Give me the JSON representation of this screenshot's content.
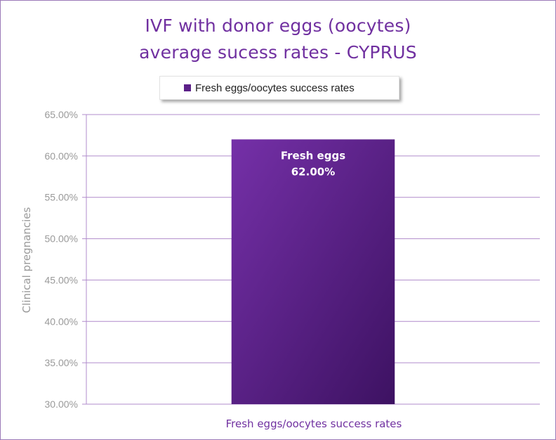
{
  "chart_data": {
    "type": "bar",
    "title": "IVF with donor eggs (oocytes)",
    "subtitle": "average sucess rates - CYPRUS",
    "categories": [
      "Fresh eggs/oocytes success rates"
    ],
    "series": [
      {
        "name": "Fresh eggs/oocytes success rates",
        "values": [
          62.0
        ],
        "data_label_name": "Fresh eggs",
        "data_label_value": "62.00%"
      }
    ],
    "xlabel": "Fresh eggs/oocytes success rates",
    "ylabel": "Clinical pregnancies",
    "ylim": [
      30,
      65
    ],
    "yticks": [
      30,
      35,
      40,
      45,
      50,
      55,
      60,
      65
    ],
    "ytick_labels": [
      "30.00%",
      "35.00%",
      "40.00%",
      "45.00%",
      "50.00%",
      "55.00%",
      "60.00%",
      "65.00%"
    ],
    "grid": true,
    "legend_position": "top",
    "colors": {
      "bar_light": "#7530a8",
      "bar_dark": "#3d1262",
      "grid": "#b08ccc",
      "title": "#7030a0"
    }
  }
}
